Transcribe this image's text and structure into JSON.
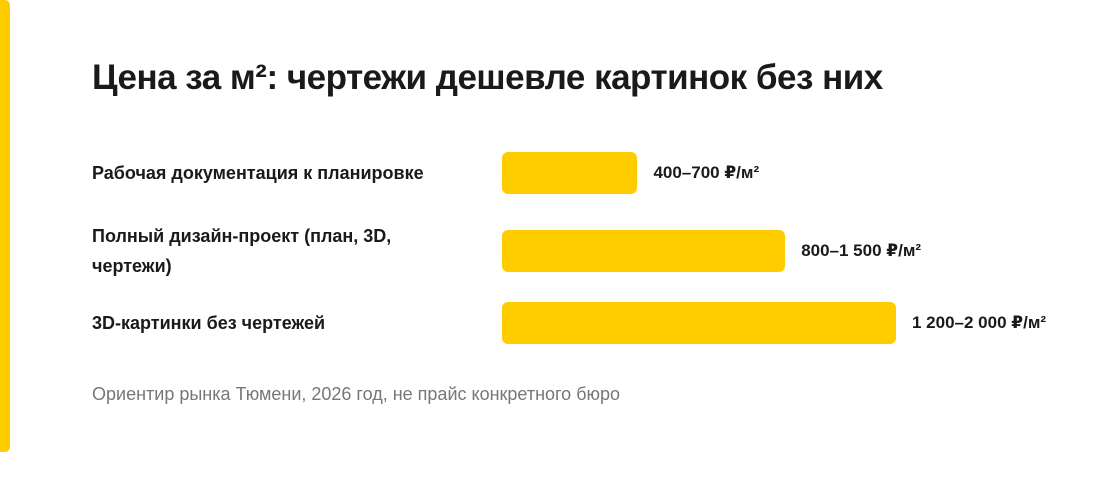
{
  "chart_data": {
    "type": "bar",
    "orientation": "horizontal",
    "title": "Цена за м²: чертежи дешевле картинок без них",
    "categories": [
      "Рабочая документация к планировке",
      "Полный дизайн-проект (план, 3D, чертежи)",
      "3D-картинки без чертежей"
    ],
    "values": [
      [
        400,
        700
      ],
      [
        800,
        1500
      ],
      [
        1200,
        2000
      ]
    ],
    "value_labels": [
      "400–700 ₽/м²",
      "800–1 500 ₽/м²",
      "1 200–2 000 ₽/м²"
    ],
    "color": "#ffcc00",
    "note": "Ориентир рынка Тюмени, 2026 год, не прайс конкретного бюро"
  }
}
